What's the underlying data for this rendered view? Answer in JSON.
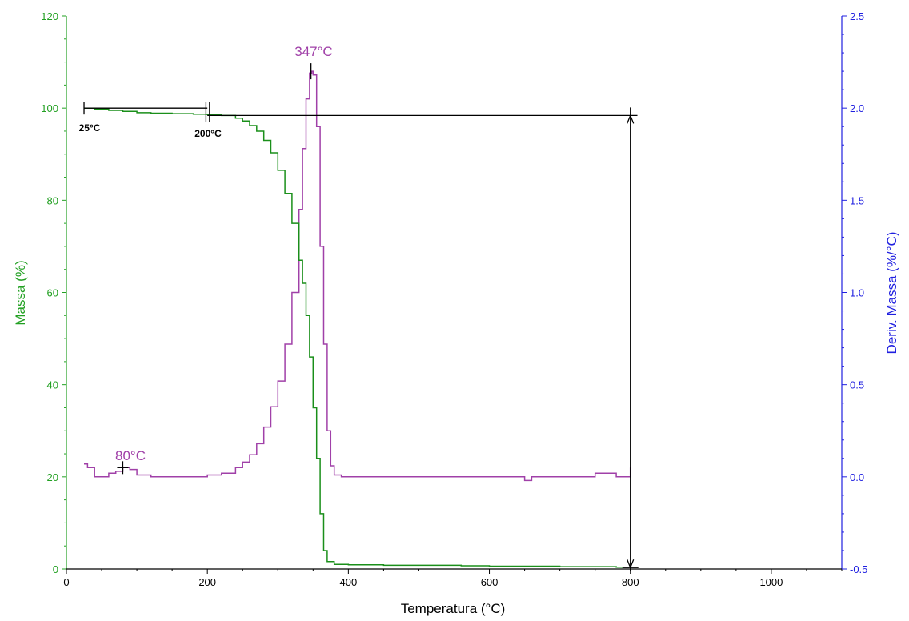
{
  "chart_data": {
    "type": "line",
    "xlabel": "Temperatura (°C)",
    "ylabel_left": "Massa (%)",
    "ylabel_right": "Deriv. Massa (%/°C)",
    "xlim": [
      0,
      1100
    ],
    "ylim_left": [
      0,
      120
    ],
    "ylim_right": [
      -0.5,
      2.5
    ],
    "x_ticks": [
      0,
      200,
      400,
      600,
      800,
      1000
    ],
    "x_tick_labels": [
      "0",
      "200",
      "400",
      "600",
      "800",
      "1000"
    ],
    "y_left_ticks": [
      0,
      20,
      40,
      60,
      80,
      100,
      120
    ],
    "y_left_tick_labels": [
      "0",
      "20",
      "40",
      "60",
      "80",
      "100",
      "120"
    ],
    "y_right_ticks": [
      -0.5,
      0.0,
      0.5,
      1.0,
      1.5,
      2.0,
      2.5
    ],
    "y_right_tick_labels": [
      "-0.5",
      "0.0",
      "0.5",
      "1.0",
      "1.5",
      "2.0",
      "2.5"
    ],
    "colors": {
      "mass": "#1a8f1a",
      "derivative": "#a040a8",
      "left_axis": "#22a022",
      "right_axis": "#2020e0",
      "annotation": "#000000"
    },
    "series": [
      {
        "axis": "left",
        "x": [
          25,
          40,
          60,
          80,
          100,
          120,
          150,
          180,
          200,
          220,
          240,
          250,
          260,
          270,
          280,
          290,
          300,
          310,
          320,
          330,
          335,
          340,
          345,
          350,
          355,
          360,
          365,
          370,
          380,
          400,
          450,
          500,
          560,
          600,
          700,
          780,
          800
        ],
        "y": [
          100,
          99.8,
          99.5,
          99.3,
          99.0,
          98.9,
          98.8,
          98.7,
          98.6,
          98.4,
          97.8,
          97.2,
          96.2,
          95.0,
          93.0,
          90.3,
          86.5,
          81.5,
          75.0,
          67.0,
          62.0,
          55.0,
          46.0,
          35.0,
          24.0,
          12.0,
          4.0,
          1.6,
          1.0,
          0.9,
          0.8,
          0.8,
          0.7,
          0.6,
          0.5,
          0.4,
          0.3
        ]
      },
      {
        "axis": "right",
        "x": [
          25,
          30,
          40,
          50,
          60,
          70,
          80,
          90,
          100,
          120,
          150,
          180,
          200,
          220,
          240,
          250,
          260,
          270,
          280,
          290,
          300,
          310,
          320,
          330,
          335,
          340,
          345,
          348,
          350,
          355,
          360,
          365,
          370,
          375,
          380,
          390,
          400,
          450,
          500,
          550,
          600,
          640,
          650,
          660,
          700,
          750,
          780,
          800
        ],
        "y": [
          0.07,
          0.05,
          0.0,
          0.0,
          0.02,
          0.03,
          0.05,
          0.04,
          0.01,
          0.0,
          0.0,
          0.0,
          0.01,
          0.02,
          0.05,
          0.08,
          0.12,
          0.18,
          0.27,
          0.38,
          0.52,
          0.72,
          1.0,
          1.45,
          1.78,
          2.05,
          2.19,
          2.2,
          2.18,
          1.9,
          1.25,
          0.72,
          0.25,
          0.06,
          0.01,
          0.0,
          0.0,
          0.0,
          0.0,
          0.0,
          0.0,
          0.0,
          -0.02,
          0.0,
          0.0,
          0.02,
          0.0,
          0.05
        ]
      }
    ],
    "annotations": {
      "start_label": "25°C",
      "step_end_label": "200°C",
      "derivative_minor_peak_label": "80°C",
      "derivative_main_peak_label": "347°C"
    },
    "grid": false
  }
}
